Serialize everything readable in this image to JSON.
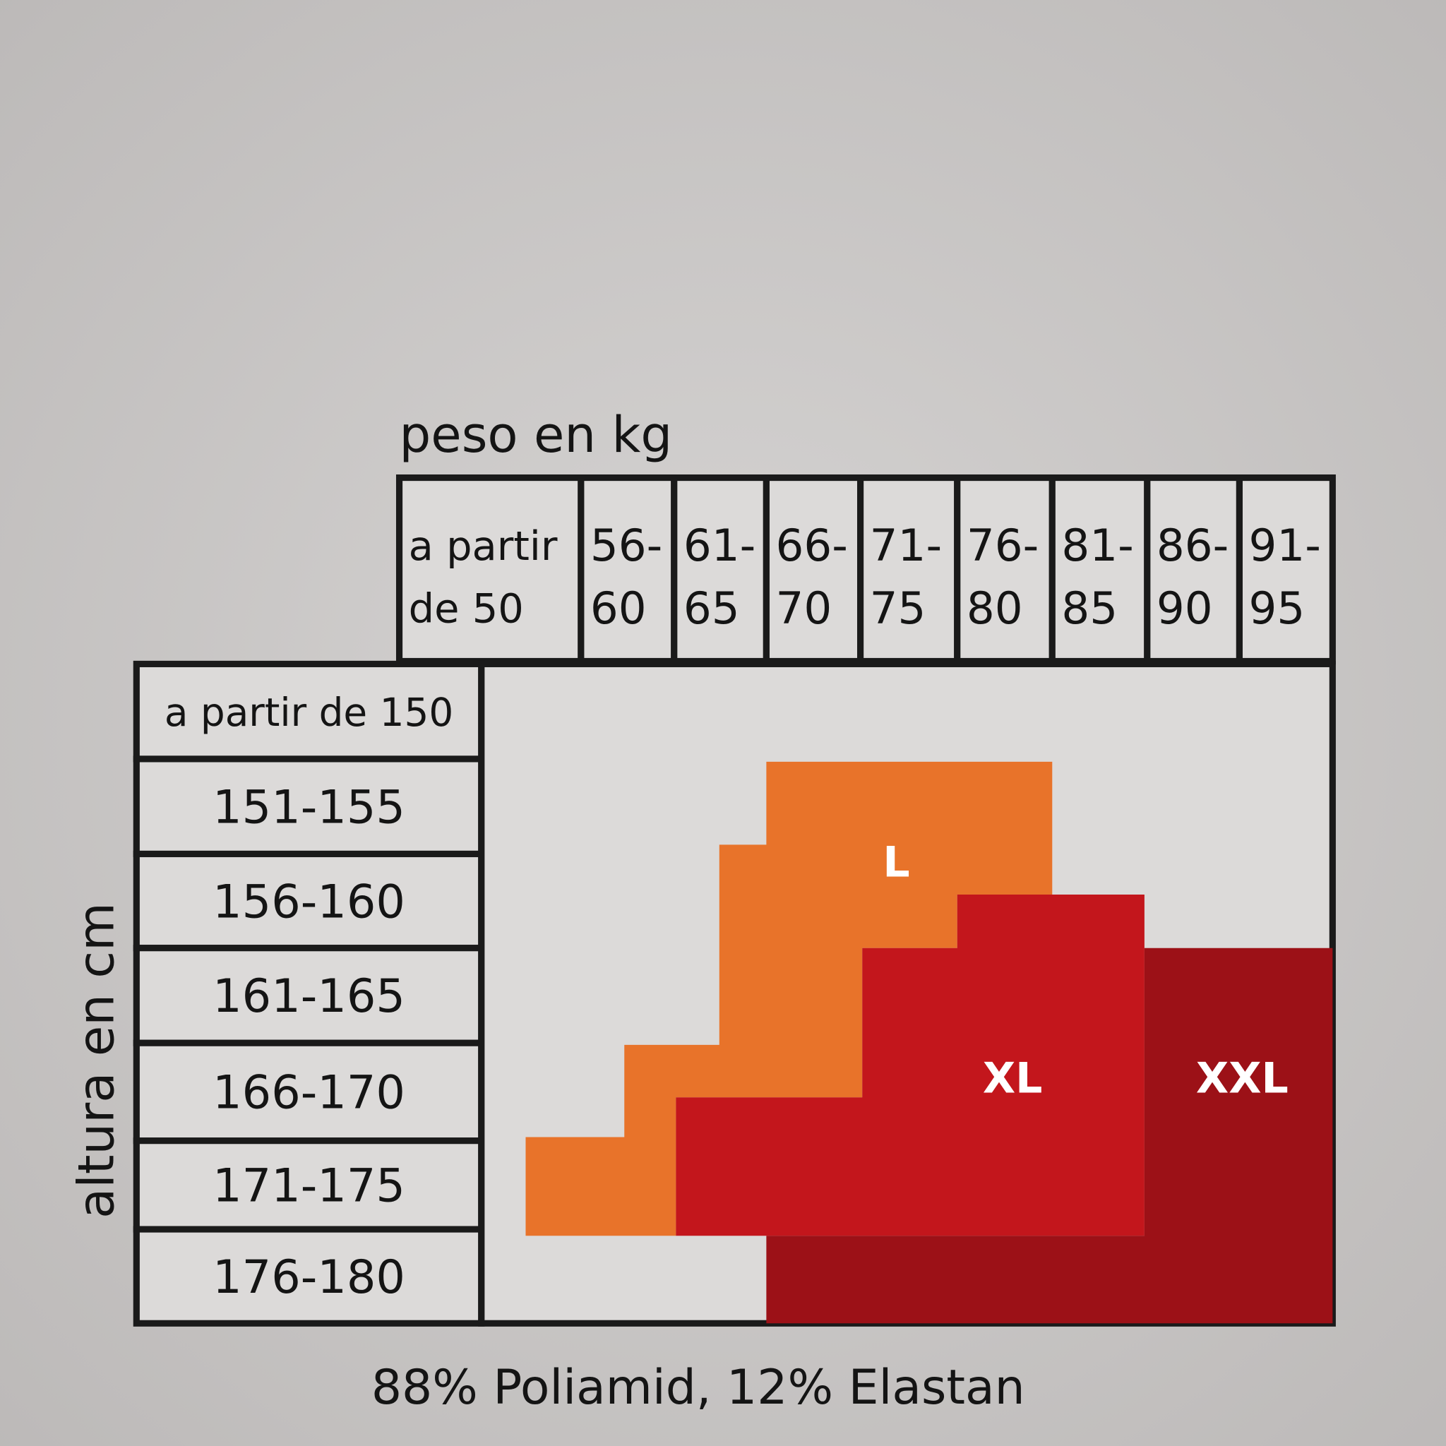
{
  "header": {
    "weight_label": "peso en kg",
    "height_label": "altura en cm"
  },
  "weight_columns": [
    [
      "a partir",
      "de 50"
    ],
    [
      "56-",
      "60"
    ],
    [
      "61-",
      "65"
    ],
    [
      "66-",
      "70"
    ],
    [
      "71-",
      "75"
    ],
    [
      "76-",
      "80"
    ],
    [
      "81-",
      "85"
    ],
    [
      "86-",
      "90"
    ],
    [
      "91-",
      "95"
    ]
  ],
  "height_rows": [
    "a partir de 150",
    "151-155",
    "156-160",
    "161-165",
    "166-170",
    "171-175",
    "176-180"
  ],
  "sizes": [
    "L",
    "XL",
    "XXL"
  ],
  "footer": "88% Poliamid, 12% Elastan"
}
